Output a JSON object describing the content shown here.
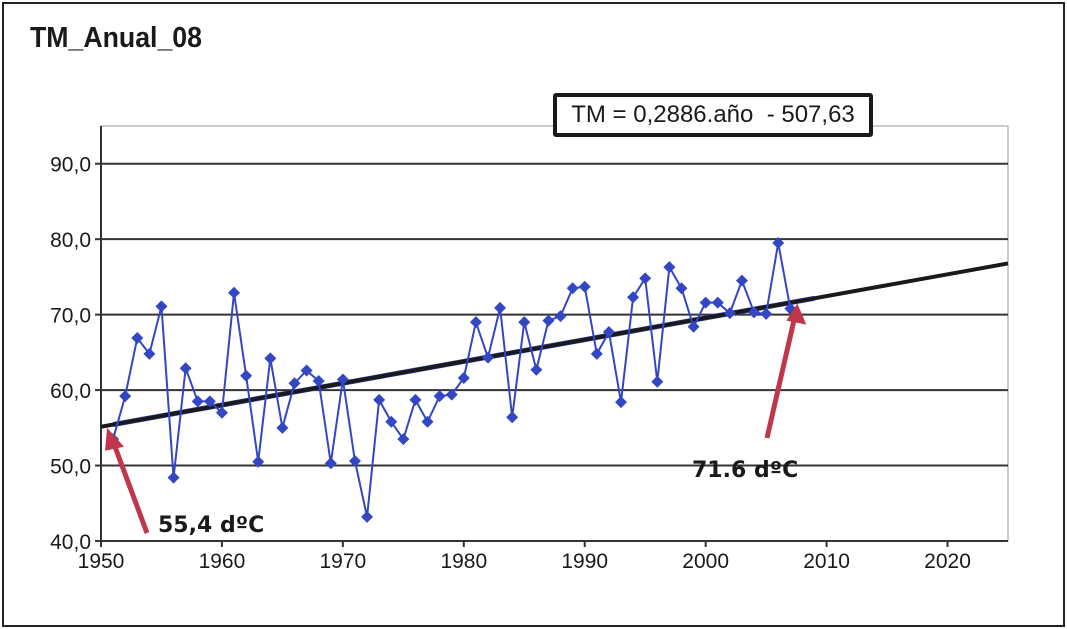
{
  "chart_data": {
    "type": "line",
    "title": "TM_Anual_08",
    "xlabel": "",
    "ylabel": "",
    "xlim": [
      1950,
      2025
    ],
    "ylim": [
      40,
      95
    ],
    "x_ticks": [
      "1950",
      "1960",
      "1970",
      "1980",
      "1990",
      "2000",
      "2010",
      "2020"
    ],
    "x_tick_values": [
      1950,
      1960,
      1970,
      1980,
      1990,
      2000,
      2010,
      2020
    ],
    "y_ticks": [
      "40,0",
      "50,0",
      "60,0",
      "70,0",
      "80,0",
      "90,0"
    ],
    "y_tick_values": [
      40,
      50,
      60,
      70,
      80,
      90
    ],
    "grid": "horizontal",
    "series": [
      {
        "name": "TM",
        "color": "#3347c4",
        "marker": "diamond",
        "x": [
          1951,
          1952,
          1953,
          1954,
          1955,
          1956,
          1957,
          1958,
          1959,
          1960,
          1961,
          1962,
          1963,
          1964,
          1965,
          1966,
          1967,
          1968,
          1969,
          1970,
          1971,
          1972,
          1973,
          1974,
          1975,
          1976,
          1977,
          1978,
          1979,
          1980,
          1981,
          1982,
          1983,
          1984,
          1985,
          1986,
          1987,
          1988,
          1989,
          1990,
          1991,
          1992,
          1993,
          1994,
          1995,
          1996,
          1997,
          1998,
          1999,
          2000,
          2001,
          2002,
          2003,
          2004,
          2005,
          2006,
          2007
        ],
        "values": [
          53.5,
          59.2,
          66.9,
          64.8,
          71.1,
          48.4,
          62.9,
          58.5,
          58.5,
          57.0,
          72.9,
          61.9,
          50.5,
          64.2,
          55.0,
          60.9,
          62.6,
          61.2,
          50.3,
          61.4,
          50.6,
          43.2,
          58.7,
          55.8,
          53.5,
          58.7,
          55.8,
          59.2,
          59.4,
          61.6,
          69.0,
          64.3,
          70.9,
          56.4,
          69.0,
          62.7,
          69.2,
          69.8,
          73.5,
          73.7,
          64.8,
          67.7,
          58.4,
          72.3,
          74.8,
          61.1,
          76.3,
          73.5,
          68.4,
          71.6,
          71.6,
          70.2,
          74.5,
          70.3,
          70.1,
          79.5,
          70.8
        ]
      }
    ],
    "trendline": {
      "label": "TM = 0,2886.año  - 507,63",
      "slope": 0.2886,
      "intercept": -507.63,
      "x_range": [
        1950,
        2025
      ],
      "color": "#1a1a1a"
    },
    "annotations": [
      {
        "text": "55,4 dºC",
        "x": 1950.5,
        "y": 55.4,
        "arrow_color": "#c0364a"
      },
      {
        "text": "71.6 dºC",
        "x": 2007.5,
        "y": 71.6,
        "arrow_color": "#c0364a"
      }
    ]
  }
}
